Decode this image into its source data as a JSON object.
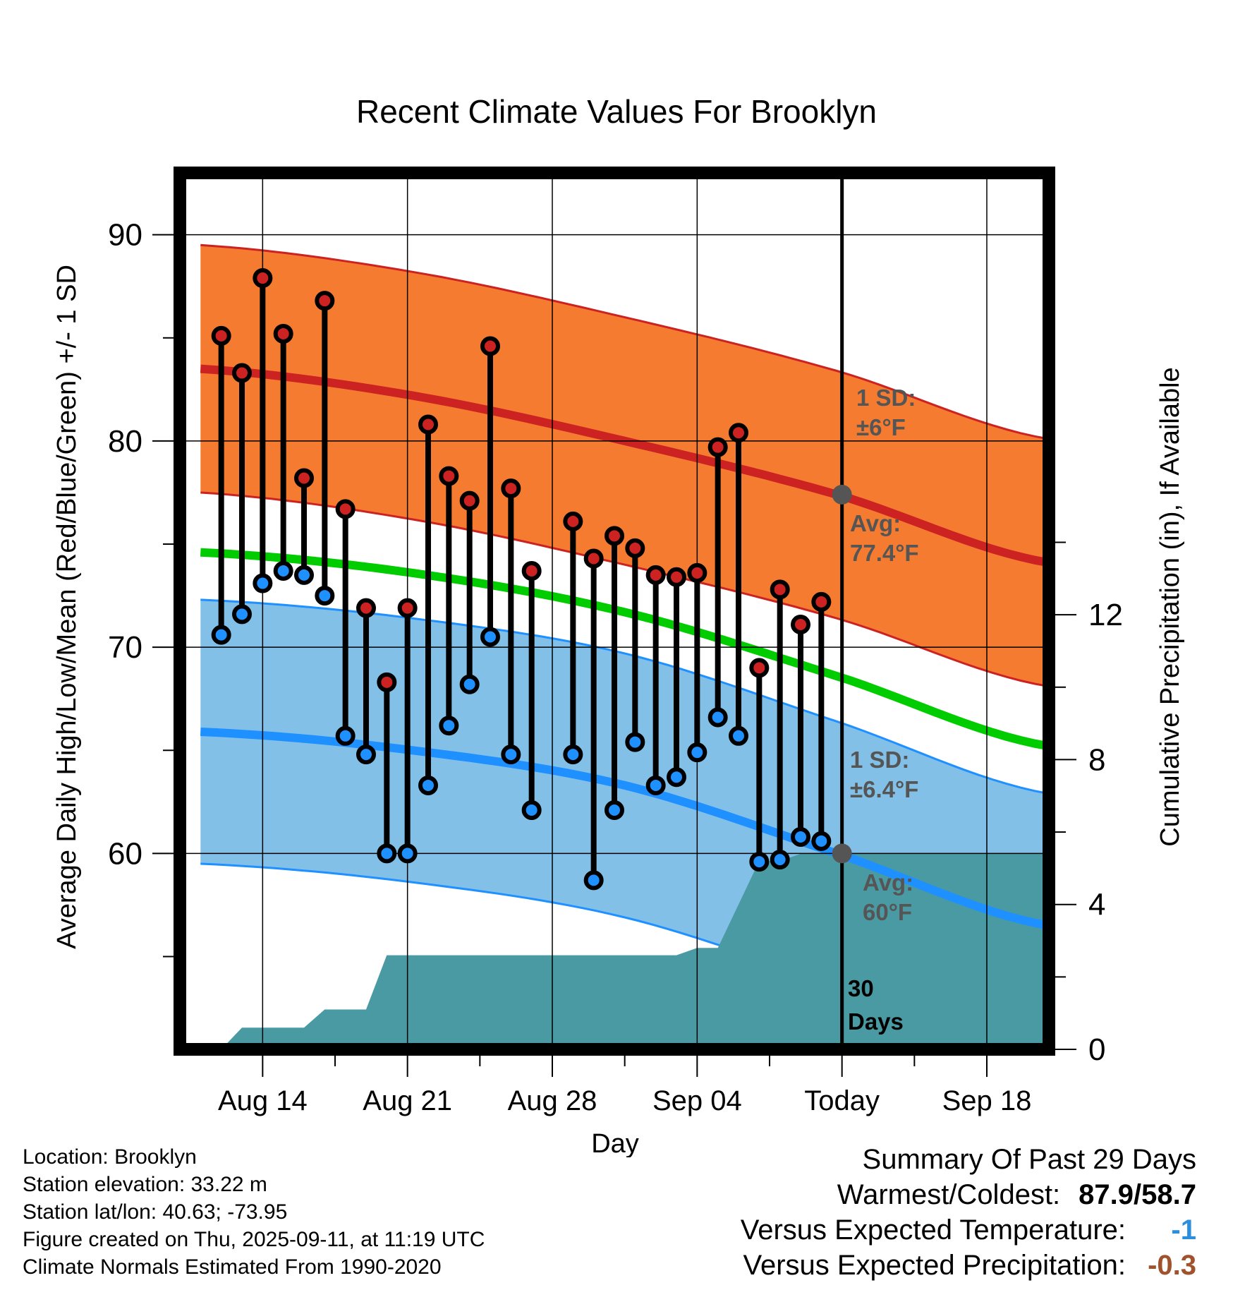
{
  "chart_data": {
    "type": "line",
    "title": "Recent Climate Values For Brooklyn",
    "xlabel": "Day",
    "ylabel": "Average Daily High/Low/Mean (Red/Blue/Green) +/- 1 SD",
    "ylabel_right": "Cumulative Precipitation (in), If Available",
    "ylim": [
      50.5,
      93
    ],
    "ylim_right": [
      0,
      24.2
    ],
    "yticks": [
      "60",
      "70",
      "80",
      "90"
    ],
    "yticks_right": [
      "0",
      "4",
      "8",
      "12"
    ],
    "xlim": [
      "2025-08-10",
      "2025-09-21"
    ],
    "xticks": [
      {
        "date": "2025-08-14",
        "label": "Aug 14"
      },
      {
        "date": "2025-08-21",
        "label": "Aug 21"
      },
      {
        "date": "2025-08-28",
        "label": "Aug 28"
      },
      {
        "date": "2025-09-04",
        "label": "Sep 04"
      },
      {
        "date": "2025-09-11",
        "label": "Today"
      },
      {
        "date": "2025-09-18",
        "label": "Sep 18"
      }
    ],
    "grid": true,
    "today": "2025-09-11",
    "dates": [
      "2025-08-12",
      "2025-08-13",
      "2025-08-14",
      "2025-08-15",
      "2025-08-16",
      "2025-08-17",
      "2025-08-18",
      "2025-08-19",
      "2025-08-20",
      "2025-08-21",
      "2025-08-22",
      "2025-08-23",
      "2025-08-24",
      "2025-08-25",
      "2025-08-26",
      "2025-08-27",
      "2025-08-28",
      "2025-08-29",
      "2025-08-30",
      "2025-08-31",
      "2025-09-01",
      "2025-09-02",
      "2025-09-03",
      "2025-09-04",
      "2025-09-05",
      "2025-09-06",
      "2025-09-07",
      "2025-09-08",
      "2025-09-09",
      "2025-09-10"
    ],
    "daily_high": [
      85.1,
      83.3,
      87.9,
      85.2,
      78.2,
      86.8,
      76.7,
      71.9,
      68.3,
      71.9,
      80.8,
      78.3,
      77.1,
      84.6,
      77.7,
      73.7,
      null,
      76.1,
      74.3,
      75.4,
      74.8,
      73.5,
      73.4,
      73.6,
      79.7,
      80.4,
      69.0,
      72.8,
      71.1,
      72.2
    ],
    "daily_low": [
      70.6,
      71.6,
      73.1,
      73.7,
      73.5,
      72.5,
      65.7,
      64.8,
      60.0,
      60.0,
      63.3,
      66.2,
      68.2,
      70.5,
      64.8,
      62.1,
      null,
      64.8,
      58.7,
      62.1,
      65.4,
      63.3,
      63.7,
      64.9,
      66.6,
      65.7,
      59.6,
      59.7,
      60.8,
      60.6
    ],
    "normal_start": "2025-08-11",
    "normal_end": "2025-09-21",
    "normal_high": [
      83.5,
      82.2,
      80.0,
      77.4,
      74.1
    ],
    "normal_high_sd": 6,
    "normal_low": [
      65.9,
      65.0,
      63.3,
      60.0,
      56.5
    ],
    "normal_low_sd": 6.4,
    "normal_mean": [
      74.6,
      73.6,
      71.7,
      68.6,
      65.2
    ],
    "precip_cumulative": {
      "dates": [
        "2025-08-12",
        "2025-08-13",
        "2025-08-16",
        "2025-08-17",
        "2025-08-19",
        "2025-08-20",
        "2025-09-03",
        "2025-09-04",
        "2025-09-05",
        "2025-09-07",
        "2025-09-08",
        "2025-09-09",
        "2025-09-21"
      ],
      "values": [
        0.0,
        0.6,
        0.6,
        1.1,
        1.1,
        2.6,
        2.6,
        2.8,
        2.8,
        5.2,
        5.2,
        5.4,
        5.4
      ]
    },
    "annotations": {
      "high_sd": {
        "line1": "1 SD:",
        "line2": "±6°F"
      },
      "high_avg": {
        "line1": "Avg:",
        "line2": "77.4°F",
        "value": 77.4
      },
      "low_sd": {
        "line1": "1 SD:",
        "line2": "±6.4°F"
      },
      "low_avg": {
        "line1": "Avg:",
        "line2": "60°F",
        "value": 60
      },
      "days": {
        "line1": "30",
        "line2": "Days"
      }
    },
    "colors": {
      "high": "#cc2222",
      "high_band": "#f47b30",
      "low": "#1e90ff",
      "low_band": "#82c0e8",
      "mean": "#00cc00",
      "precip": "#4a9aa3",
      "annotation": "#555555"
    }
  },
  "info": {
    "location": "Location: Brooklyn",
    "elevation": "Station elevation: 33.22 m",
    "latlon": "Station lat/lon: 40.63; -73.95",
    "created": "Figure created on Thu, 2025-09-11, at 11:19 UTC",
    "normals": "Climate Normals Estimated From 1990-2020"
  },
  "summary": {
    "title": "Summary Of Past 29 Days",
    "warm_cold_label": "Warmest/Coldest:",
    "warm_cold_value": "87.9/58.7",
    "temp_label": "Versus Expected Temperature:",
    "temp_value": "-1",
    "temp_color": "#2b8fde",
    "precip_label": "Versus Expected Precipitation:",
    "precip_value": "-0.3",
    "precip_color": "#a0522d"
  }
}
